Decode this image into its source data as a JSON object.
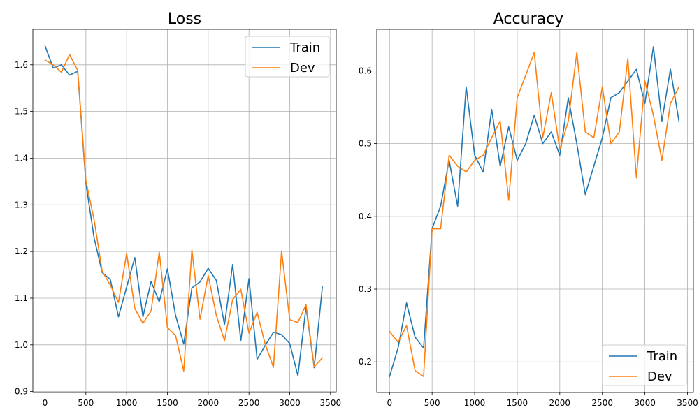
{
  "chart_data": [
    {
      "type": "line",
      "title": "Loss",
      "xlabel": "",
      "ylabel": "",
      "xlim": [
        -150,
        3570
      ],
      "ylim": [
        0.898,
        1.676
      ],
      "xticks": [
        0,
        500,
        1000,
        1500,
        2000,
        2500,
        3000,
        3500
      ],
      "xtick_labels": [
        "0",
        "500",
        "1000",
        "1500",
        "2000",
        "2500",
        "3000",
        "3500"
      ],
      "yticks": [
        0.9,
        1.0,
        1.1,
        1.2,
        1.3,
        1.4,
        1.5,
        1.6
      ],
      "ytick_labels": [
        "0.9",
        "1.0",
        "1.1",
        "1.2",
        "1.3",
        "1.4",
        "1.5",
        "1.6"
      ],
      "grid": true,
      "legend_position": "top-right",
      "x": [
        0,
        100,
        200,
        300,
        400,
        500,
        600,
        700,
        800,
        900,
        1000,
        1100,
        1200,
        1300,
        1400,
        1500,
        1600,
        1700,
        1800,
        1900,
        2000,
        2100,
        2200,
        2300,
        2400,
        2500,
        2600,
        2700,
        2800,
        2900,
        3000,
        3100,
        3200,
        3300,
        3400
      ],
      "series": [
        {
          "name": "Train",
          "color": "#1f77b4",
          "values": [
            1.64,
            1.593,
            1.6,
            1.578,
            1.586,
            1.347,
            1.23,
            1.155,
            1.14,
            1.06,
            1.124,
            1.187,
            1.06,
            1.136,
            1.092,
            1.163,
            1.063,
            1.002,
            1.122,
            1.135,
            1.164,
            1.138,
            1.043,
            1.172,
            1.009,
            1.142,
            0.969,
            0.999,
            1.027,
            1.022,
            1.003,
            0.934,
            1.081,
            0.951,
            1.124
          ]
        },
        {
          "name": "Dev",
          "color": "#ff7f0e",
          "values": [
            1.61,
            1.6,
            1.584,
            1.622,
            1.588,
            1.352,
            1.269,
            1.158,
            1.128,
            1.091,
            1.196,
            1.078,
            1.046,
            1.073,
            1.199,
            1.037,
            1.02,
            0.944,
            1.203,
            1.055,
            1.149,
            1.063,
            1.009,
            1.097,
            1.119,
            1.025,
            1.07,
            1.001,
            0.952,
            1.201,
            1.054,
            1.048,
            1.086,
            0.953,
            0.972
          ]
        }
      ]
    },
    {
      "type": "line",
      "title": "Accuracy",
      "xlabel": "",
      "ylabel": "",
      "xlim": [
        -150,
        3570
      ],
      "ylim": [
        0.158,
        0.657
      ],
      "xticks": [
        0,
        500,
        1000,
        1500,
        2000,
        2500,
        3000,
        3500
      ],
      "xtick_labels": [
        "0",
        "500",
        "1000",
        "1500",
        "2000",
        "2500",
        "3000",
        "3500"
      ],
      "yticks": [
        0.2,
        0.3,
        0.4,
        0.5,
        0.6
      ],
      "ytick_labels": [
        "0.2",
        "0.3",
        "0.4",
        "0.5",
        "0.6"
      ],
      "grid": true,
      "legend_position": "bottom-right",
      "x": [
        0,
        100,
        200,
        300,
        400,
        500,
        600,
        700,
        800,
        900,
        1000,
        1100,
        1200,
        1300,
        1400,
        1500,
        1600,
        1700,
        1800,
        1900,
        2000,
        2100,
        2200,
        2300,
        2400,
        2500,
        2600,
        2700,
        2800,
        2900,
        3000,
        3100,
        3200,
        3300,
        3400
      ],
      "series": [
        {
          "name": "Train",
          "color": "#1f77b4",
          "values": [
            0.18,
            0.219,
            0.281,
            0.234,
            0.219,
            0.383,
            0.414,
            0.477,
            0.414,
            0.578,
            0.484,
            0.461,
            0.547,
            0.469,
            0.523,
            0.477,
            0.5,
            0.539,
            0.5,
            0.516,
            0.484,
            0.563,
            0.5,
            0.43,
            0.469,
            0.508,
            0.563,
            0.57,
            0.586,
            0.602,
            0.555,
            0.633,
            0.531,
            0.602,
            0.531
          ]
        },
        {
          "name": "Dev",
          "color": "#ff7f0e",
          "values": [
            0.242,
            0.227,
            0.25,
            0.188,
            0.18,
            0.383,
            0.383,
            0.484,
            0.469,
            0.461,
            0.477,
            0.484,
            0.508,
            0.531,
            0.422,
            0.563,
            0.594,
            0.625,
            0.508,
            0.57,
            0.492,
            0.531,
            0.625,
            0.516,
            0.508,
            0.578,
            0.5,
            0.516,
            0.617,
            0.453,
            0.586,
            0.539,
            0.477,
            0.555,
            0.578
          ]
        }
      ]
    }
  ]
}
